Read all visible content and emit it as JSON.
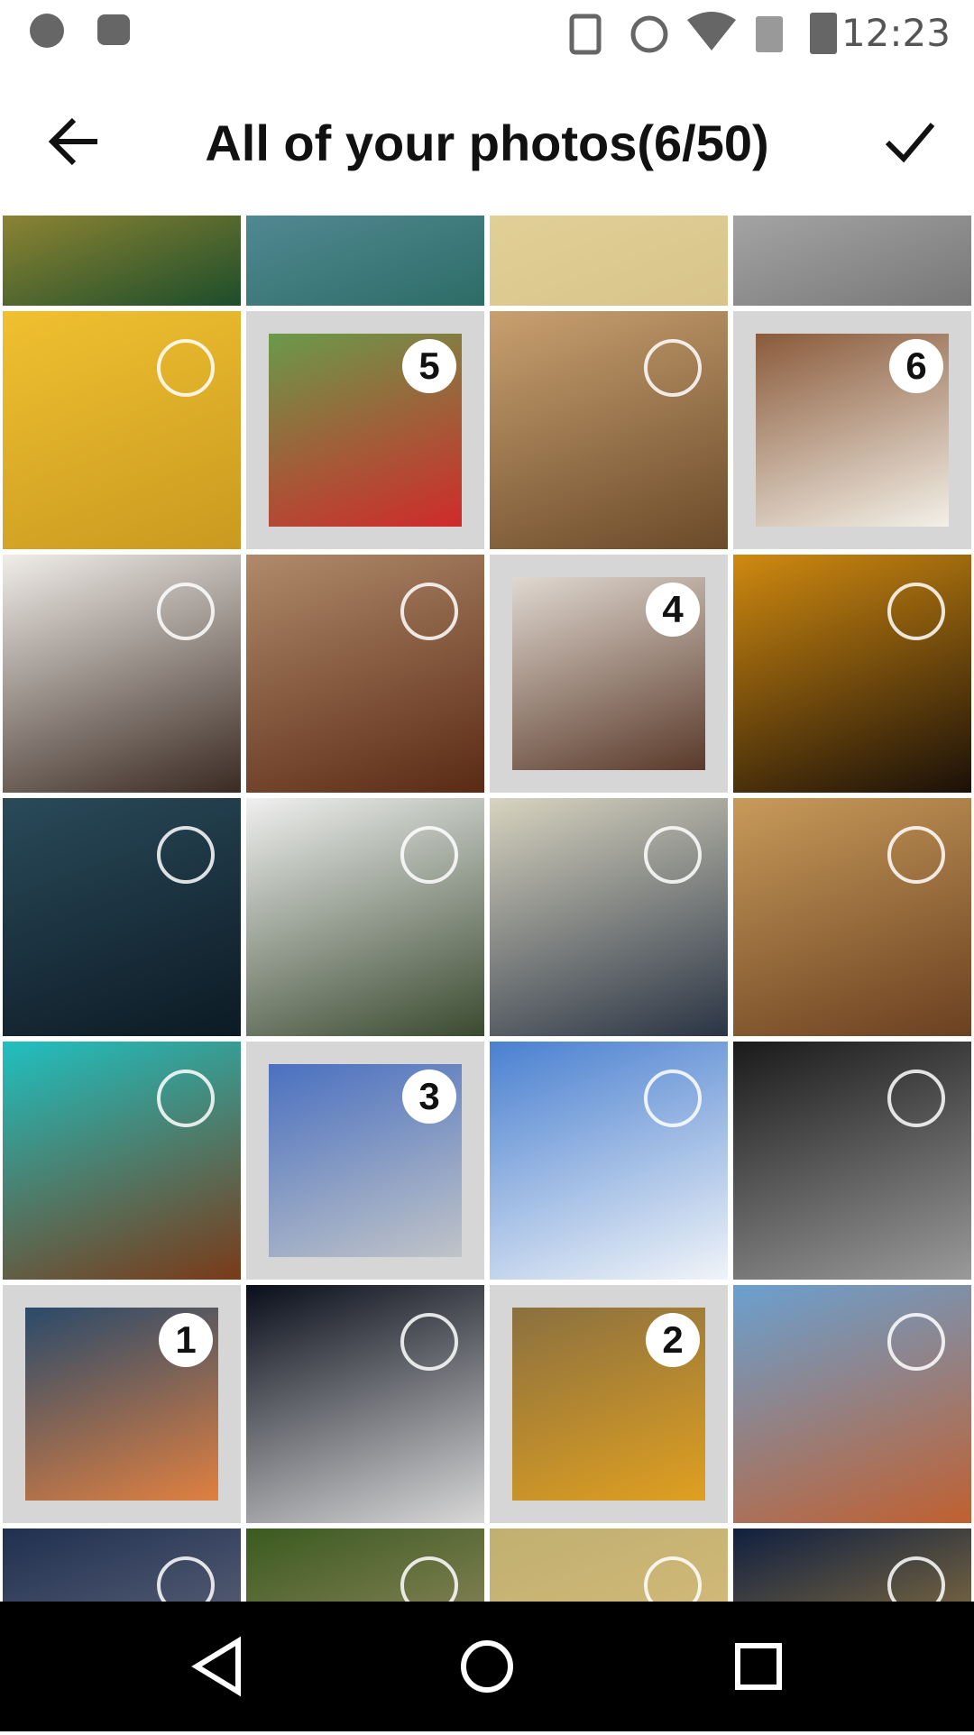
{
  "status_bar": {
    "time": "12:23"
  },
  "header": {
    "title": "All of your photos(6/50)"
  },
  "grid": {
    "rows": [
      [
        null,
        null,
        null,
        null
      ],
      [
        null,
        5,
        null,
        6
      ],
      [
        null,
        null,
        4,
        null
      ],
      [
        null,
        null,
        null,
        null
      ],
      [
        null,
        3,
        null,
        null
      ],
      [
        1,
        null,
        2,
        null
      ],
      [
        null,
        null,
        null,
        null
      ]
    ]
  }
}
